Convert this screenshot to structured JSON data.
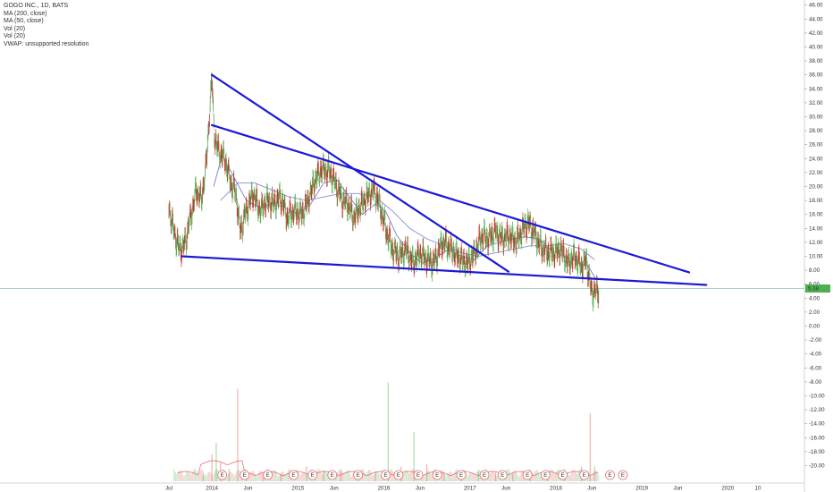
{
  "legend": {
    "title": "GOGO INC., 1D, BATS",
    "items": [
      "MA (200, close)",
      "MA (50, close)",
      "Vol (20)",
      "Vol (20)",
      "VWAP: unsupported resolution"
    ]
  },
  "last_price_label": "5.38",
  "chart_data": {
    "type": "line",
    "title": "GOGO INC., 1D, BATS",
    "y_ticks": [
      "46.00",
      "44.00",
      "42.00",
      "40.00",
      "38.00",
      "36.00",
      "34.00",
      "32.00",
      "30.00",
      "28.00",
      "26.00",
      "24.00",
      "22.00",
      "20.00",
      "18.00",
      "16.00",
      "14.00",
      "12.00",
      "10.00",
      "8.00",
      "6.00",
      "4.00",
      "2.00",
      "0.00",
      "-2.00",
      "-4.00",
      "-6.00",
      "-8.00",
      "-10.00",
      "-12.00",
      "-14.00",
      "-16.00",
      "-18.00",
      "-20.00"
    ],
    "x_ticks": [
      {
        "label": "Jul",
        "t": 2013.5
      },
      {
        "label": "2014",
        "t": 2014.0
      },
      {
        "label": "Jun",
        "t": 2014.42
      },
      {
        "label": "2015",
        "t": 2015.0
      },
      {
        "label": "Jun",
        "t": 2015.42
      },
      {
        "label": "2016",
        "t": 2016.0
      },
      {
        "label": "Jun",
        "t": 2016.42
      },
      {
        "label": "2017",
        "t": 2017.0
      },
      {
        "label": "Jun",
        "t": 2017.42
      },
      {
        "label": "2018",
        "t": 2018.0
      },
      {
        "label": "Jun",
        "t": 2018.42
      },
      {
        "label": "2019",
        "t": 2019.0
      },
      {
        "label": "Jun",
        "t": 2019.42
      },
      {
        "label": "2020",
        "t": 2020.0
      },
      {
        "label": "10",
        "t": 2020.35
      }
    ],
    "ylim": [
      -21,
      47
    ],
    "xlim": [
      2013.3,
      2021.3
    ],
    "price": [
      [
        2013.5,
        17.0
      ],
      [
        2013.55,
        14.0
      ],
      [
        2013.62,
        11.0
      ],
      [
        2013.68,
        11.5
      ],
      [
        2013.75,
        15.5
      ],
      [
        2013.82,
        19.5
      ],
      [
        2013.88,
        18.0
      ],
      [
        2013.94,
        24.0
      ],
      [
        2013.97,
        30.0
      ],
      [
        2014.0,
        35.5
      ],
      [
        2014.03,
        27.0
      ],
      [
        2014.08,
        25.0
      ],
      [
        2014.15,
        24.0
      ],
      [
        2014.22,
        20.5
      ],
      [
        2014.28,
        19.0
      ],
      [
        2014.33,
        13.5
      ],
      [
        2014.4,
        16.5
      ],
      [
        2014.48,
        19.0
      ],
      [
        2014.56,
        16.5
      ],
      [
        2014.64,
        18.0
      ],
      [
        2014.72,
        17.5
      ],
      [
        2014.8,
        18.5
      ],
      [
        2014.88,
        15.5
      ],
      [
        2014.95,
        16.5
      ],
      [
        2015.05,
        16.0
      ],
      [
        2015.12,
        18.0
      ],
      [
        2015.2,
        21.0
      ],
      [
        2015.28,
        22.5
      ],
      [
        2015.38,
        22.0
      ],
      [
        2015.45,
        20.0
      ],
      [
        2015.52,
        18.0
      ],
      [
        2015.58,
        17.5
      ],
      [
        2015.65,
        15.5
      ],
      [
        2015.72,
        17.0
      ],
      [
        2015.8,
        18.5
      ],
      [
        2015.88,
        19.5
      ],
      [
        2015.95,
        17.5
      ],
      [
        2016.02,
        14.0
      ],
      [
        2016.1,
        11.0
      ],
      [
        2016.18,
        10.0
      ],
      [
        2016.26,
        11.0
      ],
      [
        2016.34,
        9.0
      ],
      [
        2016.42,
        10.5
      ],
      [
        2016.5,
        9.5
      ],
      [
        2016.58,
        9.0
      ],
      [
        2016.68,
        12.0
      ],
      [
        2016.75,
        11.5
      ],
      [
        2016.82,
        10.5
      ],
      [
        2016.9,
        9.5
      ],
      [
        2016.98,
        9.0
      ],
      [
        2017.06,
        10.5
      ],
      [
        2017.14,
        13.0
      ],
      [
        2017.22,
        12.5
      ],
      [
        2017.3,
        13.5
      ],
      [
        2017.38,
        12.5
      ],
      [
        2017.46,
        13.0
      ],
      [
        2017.54,
        12.0
      ],
      [
        2017.62,
        14.0
      ],
      [
        2017.68,
        14.8
      ],
      [
        2017.74,
        13.5
      ],
      [
        2017.82,
        11.5
      ],
      [
        2017.9,
        10.5
      ],
      [
        2017.98,
        10.5
      ],
      [
        2018.06,
        11.0
      ],
      [
        2018.14,
        9.0
      ],
      [
        2018.22,
        10.0
      ],
      [
        2018.3,
        8.5
      ],
      [
        2018.36,
        9.5
      ],
      [
        2018.4,
        5.5
      ],
      [
        2018.44,
        4.7
      ],
      [
        2018.5,
        5.3
      ]
    ],
    "ma200": [
      [
        2014.1,
        18.0
      ],
      [
        2014.3,
        20.5
      ],
      [
        2014.5,
        20.5
      ],
      [
        2014.7,
        19.5
      ],
      [
        2014.9,
        18.5
      ],
      [
        2015.1,
        18.0
      ],
      [
        2015.3,
        18.5
      ],
      [
        2015.5,
        19.0
      ],
      [
        2015.7,
        19.0
      ],
      [
        2015.9,
        18.5
      ],
      [
        2016.1,
        16.5
      ],
      [
        2016.3,
        14.0
      ],
      [
        2016.5,
        12.5
      ],
      [
        2016.7,
        11.5
      ],
      [
        2016.9,
        10.5
      ],
      [
        2017.1,
        10.0
      ],
      [
        2017.3,
        10.5
      ],
      [
        2017.5,
        11.0
      ],
      [
        2017.7,
        11.5
      ],
      [
        2017.9,
        11.5
      ],
      [
        2018.1,
        11.8
      ],
      [
        2018.3,
        11.0
      ],
      [
        2018.45,
        9.5
      ]
    ],
    "ma50": [
      [
        2014.02,
        20.0
      ],
      [
        2014.12,
        24.5
      ],
      [
        2014.25,
        21.5
      ],
      [
        2014.4,
        18.0
      ],
      [
        2014.55,
        17.0
      ],
      [
        2014.7,
        17.5
      ],
      [
        2014.85,
        17.0
      ],
      [
        2015.0,
        16.0
      ],
      [
        2015.15,
        17.5
      ],
      [
        2015.3,
        20.5
      ],
      [
        2015.45,
        21.0
      ],
      [
        2015.6,
        18.5
      ],
      [
        2015.75,
        16.0
      ],
      [
        2015.9,
        17.5
      ],
      [
        2016.02,
        16.5
      ],
      [
        2016.15,
        13.0
      ],
      [
        2016.3,
        10.5
      ],
      [
        2016.45,
        9.0
      ],
      [
        2016.6,
        9.8
      ],
      [
        2016.75,
        11.0
      ],
      [
        2016.9,
        10.0
      ],
      [
        2017.05,
        9.5
      ],
      [
        2017.2,
        11.5
      ],
      [
        2017.35,
        12.0
      ],
      [
        2017.5,
        12.5
      ],
      [
        2017.65,
        12.8
      ],
      [
        2017.8,
        12.5
      ],
      [
        2017.95,
        10.8
      ],
      [
        2018.1,
        10.0
      ],
      [
        2018.25,
        9.2
      ],
      [
        2018.38,
        8.5
      ],
      [
        2018.46,
        6.8
      ]
    ],
    "trendlines": [
      {
        "from": [
          2014.0,
          36.0
        ],
        "to": [
          2017.45,
          7.8
        ]
      },
      {
        "from": [
          2014.0,
          28.8
        ],
        "to": [
          2019.55,
          7.7
        ]
      },
      {
        "from": [
          2013.65,
          10.0
        ],
        "to": [
          2019.75,
          5.9
        ]
      }
    ],
    "volume_bars": [
      [
        2013.9,
        5
      ],
      [
        2014.0,
        22
      ],
      [
        2014.05,
        31
      ],
      [
        2014.1,
        15
      ],
      [
        2014.2,
        10
      ],
      [
        2014.3,
        75
      ],
      [
        2014.4,
        8
      ],
      [
        2014.6,
        6
      ],
      [
        2014.8,
        5
      ],
      [
        2015.1,
        12
      ],
      [
        2015.3,
        9
      ],
      [
        2015.5,
        8
      ],
      [
        2015.7,
        6
      ],
      [
        2015.9,
        8
      ],
      [
        2016.05,
        80
      ],
      [
        2016.2,
        12
      ],
      [
        2016.35,
        40
      ],
      [
        2016.5,
        14
      ],
      [
        2016.7,
        7
      ],
      [
        2016.9,
        6
      ],
      [
        2017.1,
        8
      ],
      [
        2017.3,
        7
      ],
      [
        2017.5,
        6
      ],
      [
        2017.7,
        5
      ],
      [
        2017.9,
        9
      ],
      [
        2018.1,
        10
      ],
      [
        2018.3,
        12
      ],
      [
        2018.4,
        55
      ],
      [
        2018.45,
        12
      ]
    ],
    "earnings_markers": [
      2014.12,
      2014.38,
      2014.65,
      2014.95,
      2015.17,
      2015.4,
      2015.7,
      2016.02,
      2016.17,
      2016.4,
      2016.62,
      2016.9,
      2017.17,
      2017.38,
      2017.67,
      2017.88,
      2018.08,
      2018.33,
      2018.63
    ],
    "price_scale": "right",
    "legend_position": "top-left"
  }
}
